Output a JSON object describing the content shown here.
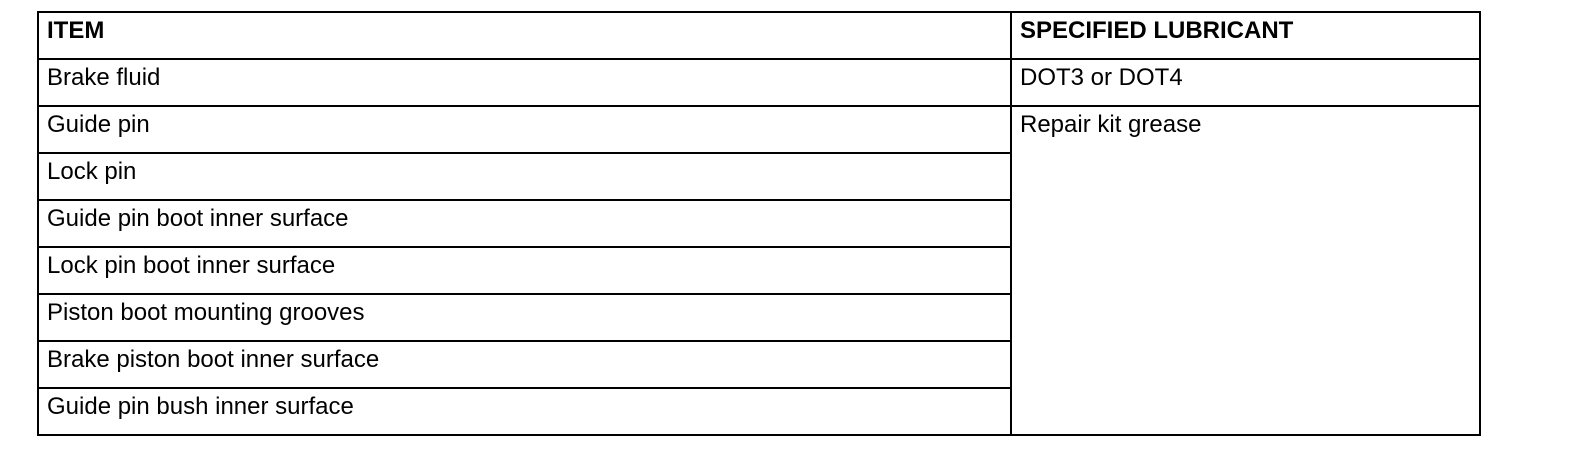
{
  "table": {
    "headers": [
      "ITEM",
      "SPECIFIED LUBRICANT"
    ],
    "rows": [
      {
        "item": "Brake fluid",
        "lubricant": "DOT3 or DOT4"
      },
      {
        "item": "Guide pin",
        "lubricant": "Repair kit grease"
      },
      {
        "item": "Lock pin"
      },
      {
        "item": "Guide pin boot inner surface"
      },
      {
        "item": "Lock pin boot inner surface"
      },
      {
        "item": "Piston boot mounting grooves"
      },
      {
        "item": "Brake piston boot inner surface"
      },
      {
        "item": "Guide pin bush inner surface"
      }
    ]
  }
}
